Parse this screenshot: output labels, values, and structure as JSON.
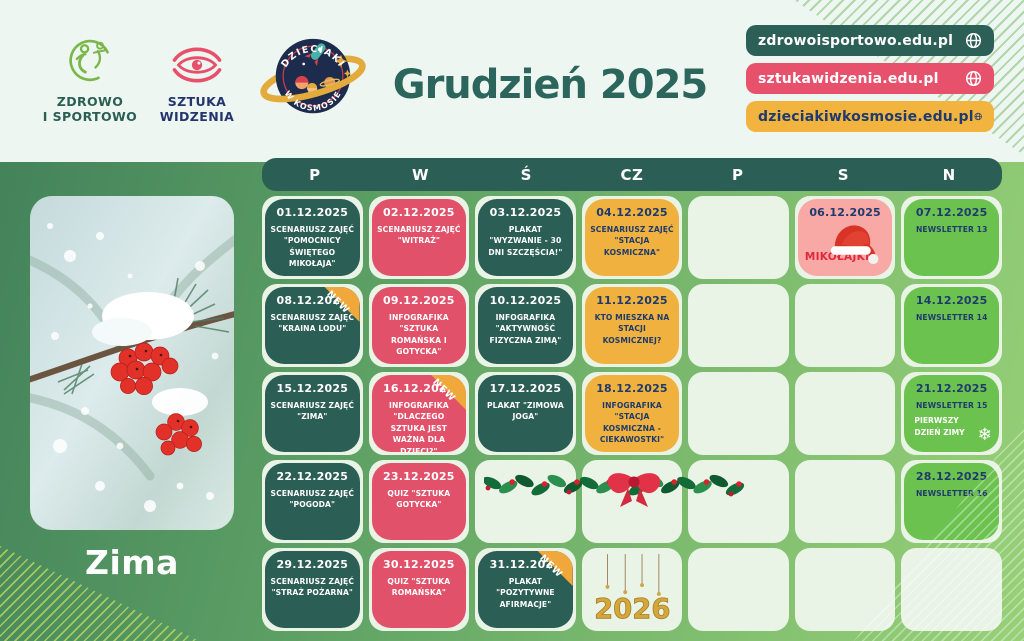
{
  "brand": {
    "logo1": {
      "line1": "ZDROWO",
      "line2": "I SPORTOWO"
    },
    "logo2": {
      "line1": "SZTUKA",
      "line2": "WIDZENIA"
    },
    "logo3": {
      "arc_top": "DZIECIAKI",
      "arc_bottom": "W KOSMOSIE"
    }
  },
  "title": "Grudzień 2025",
  "links": [
    {
      "name": "zdrowoisportowo-link",
      "label": "zdrowoisportowo.edu.pl",
      "bg": "#2c5f55",
      "fg": "#ffffff"
    },
    {
      "name": "sztukawidzenia-link",
      "label": "sztukawidzenia.edu.pl",
      "bg": "#e8516b",
      "fg": "#ffffff"
    },
    {
      "name": "dzieciakiwkosmosie-link",
      "label": "dzieciakiwkosmosie.edu.pl",
      "bg": "#f2b33f",
      "fg": "#1e3b6e"
    }
  ],
  "sidebar": {
    "season": "Zima"
  },
  "calendar": {
    "weekdays": [
      "P",
      "W",
      "Ś",
      "CZ",
      "P",
      "S",
      "N"
    ],
    "weeks": [
      [
        {
          "variant": "teal",
          "date": "01.12.2025",
          "text": "SCENARIUSZ ZAJĘĆ \"POMOCNICY ŚWIĘTEGO MIKOŁAJA\""
        },
        {
          "variant": "pink",
          "date": "02.12.2025",
          "text": "SCENARIUSZ ZAJĘĆ \"WITRAŻ\""
        },
        {
          "variant": "teal",
          "date": "03.12.2025",
          "text": "PLAKAT \"WYZWANIE - 30 DNI SZCZĘŚCIA!\""
        },
        {
          "variant": "yellow",
          "date": "04.12.2025",
          "text": "SCENARIUSZ ZAJĘĆ \"STACJA KOSMICZNA\""
        },
        {
          "variant": "empty"
        },
        {
          "variant": "lightpink",
          "date": "06.12.2025",
          "text": "MIKOŁAJKI",
          "icon": "santa-hat"
        },
        {
          "variant": "green",
          "date": "07.12.2025",
          "text": "NEWSLETTER 13"
        }
      ],
      [
        {
          "variant": "teal",
          "date": "08.12.2025",
          "text": "SCENARIUSZ ZAJĘĆ \"KRAINA LODU\"",
          "badge": true
        },
        {
          "variant": "pink",
          "date": "09.12.2025",
          "text": "INFOGRAFIKA \"SZTUKA ROMAŃSKA I GOTYCKA\""
        },
        {
          "variant": "teal",
          "date": "10.12.2025",
          "text": "INFOGRAFIKA \"AKTYWNOŚĆ FIZYCZNA ZIMĄ\""
        },
        {
          "variant": "yellow",
          "date": "11.12.2025",
          "text": "KTO MIESZKA NA STACJI KOSMICZNEJ?"
        },
        {
          "variant": "empty"
        },
        {
          "variant": "empty"
        },
        {
          "variant": "green",
          "date": "14.12.2025",
          "text": "NEWSLETTER 14"
        }
      ],
      [
        {
          "variant": "teal",
          "date": "15.12.2025",
          "text": "SCENARIUSZ ZAJĘĆ \"ZIMA\""
        },
        {
          "variant": "pink",
          "date": "16.12.2025",
          "text": "INFOGRAFIKA \"DLACZEGO SZTUKA JEST WAŻNA DLA DZIECI?\"",
          "badge": true
        },
        {
          "variant": "teal",
          "date": "17.12.2025",
          "text": "PLAKAT \"ZIMOWA JOGA\""
        },
        {
          "variant": "yellow",
          "date": "18.12.2025",
          "text": "INFOGRAFIKA \"STACJA KOSMICZNA - CIEKAWOSTKI\""
        },
        {
          "variant": "empty"
        },
        {
          "variant": "empty"
        },
        {
          "variant": "green",
          "date": "21.12.2025",
          "text": "NEWSLETTER 15",
          "subtext": "PIERWSZY DZIEŃ ZIMY",
          "icon": "snowflake"
        }
      ],
      [
        {
          "variant": "teal",
          "date": "22.12.2025",
          "text": "SCENARIUSZ ZAJĘĆ \"POGODA\""
        },
        {
          "variant": "pink",
          "date": "23.12.2025",
          "text": "QUIZ \"SZTUKA GOTYCKA\""
        },
        {
          "variant": "empty"
        },
        {
          "variant": "empty"
        },
        {
          "variant": "empty"
        },
        {
          "variant": "empty"
        },
        {
          "variant": "green",
          "date": "28.12.2025",
          "text": "NEWSLETTER 16"
        }
      ],
      [
        {
          "variant": "teal",
          "date": "29.12.2025",
          "text": "SCENARIUSZ ZAJĘĆ \"STRAŻ POŻARNA\""
        },
        {
          "variant": "pink",
          "date": "30.12.2025",
          "text": "QUIZ \"SZTUKA ROMAŃSKA\""
        },
        {
          "variant": "teal",
          "date": "31.12.2025",
          "text": "PLAKAT \"POZYTYWNE AFIRMACJE\"",
          "badge": true
        },
        {
          "variant": "empty",
          "decoration": "2026"
        },
        {
          "variant": "empty"
        },
        {
          "variant": "empty"
        },
        {
          "variant": "empty"
        }
      ]
    ]
  },
  "decorations": {
    "badge_label": "NEW",
    "new_year_label": "2026"
  },
  "colors": {
    "teal": "#2b5e54",
    "pink": "#e2516a",
    "yellow": "#f1b13e",
    "green": "#6bc24e",
    "lightpink": "#f8a8a5",
    "empty_cell": "#e9f3e6",
    "navy": "#1e3b6e",
    "title": "#2b655b",
    "top_band": "#edf6f1"
  }
}
